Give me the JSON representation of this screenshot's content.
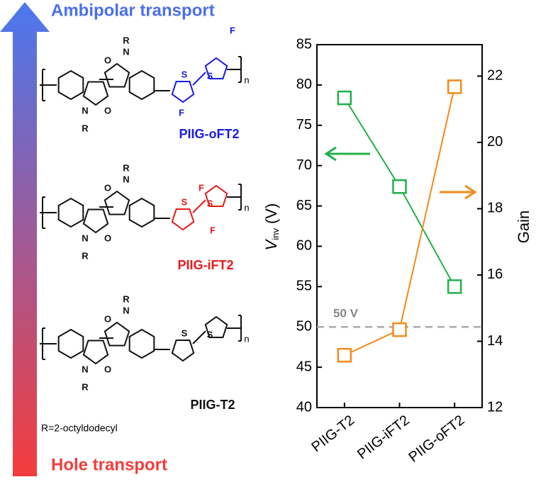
{
  "figure": {
    "arrow_top": "Ambipolar transport",
    "arrow_bottom": "Hole transport",
    "r_note": "R=2-octyldodecyl",
    "molecules": [
      {
        "name": "PIIG-oFT2",
        "color": "#1a1ae6",
        "core_atoms": [
          "O",
          "N",
          "R",
          "N",
          "O",
          "R"
        ],
        "thiophene_atoms": [
          "S",
          "S"
        ],
        "fluorine_atoms": [
          "F",
          "F"
        ],
        "repeat": "n"
      },
      {
        "name": "PIIG-iFT2",
        "color": "#e61a1a",
        "core_atoms": [
          "O",
          "N",
          "R",
          "N",
          "O",
          "R"
        ],
        "thiophene_atoms": [
          "S",
          "S"
        ],
        "fluorine_atoms": [
          "F",
          "F"
        ],
        "repeat": "n"
      },
      {
        "name": "PIIG-T2",
        "color": "#111111",
        "core_atoms": [
          "O",
          "N",
          "R",
          "N",
          "O",
          "R"
        ],
        "thiophene_atoms": [
          "S",
          "S"
        ],
        "repeat": "n"
      }
    ]
  },
  "chart_data": {
    "type": "line",
    "categories": [
      "PIIG-T2",
      "PIIG-iFT2",
      "PIIG-oFT2"
    ],
    "ylabel_symbol": "V",
    "ylabel_subscript": "inv",
    "ylabel_unit": "(V)",
    "y2label": "Gain",
    "ylim": [
      40,
      85
    ],
    "yticks": [
      40,
      45,
      50,
      55,
      60,
      65,
      70,
      75,
      80,
      85
    ],
    "y2lim": [
      12,
      22.95
    ],
    "y2ticks": [
      12,
      14,
      16,
      18,
      20,
      22
    ],
    "reference_line": {
      "value": 50,
      "label": "50 V",
      "color": "#aaaaaa"
    },
    "series": [
      {
        "color": "#22b04b",
        "values": [
          78.4,
          67.4,
          55.0
        ]
      },
      {
        "color": "#f28a1a",
        "axis": "y2",
        "values": [
          13.58,
          14.35,
          21.68
        ]
      }
    ]
  }
}
